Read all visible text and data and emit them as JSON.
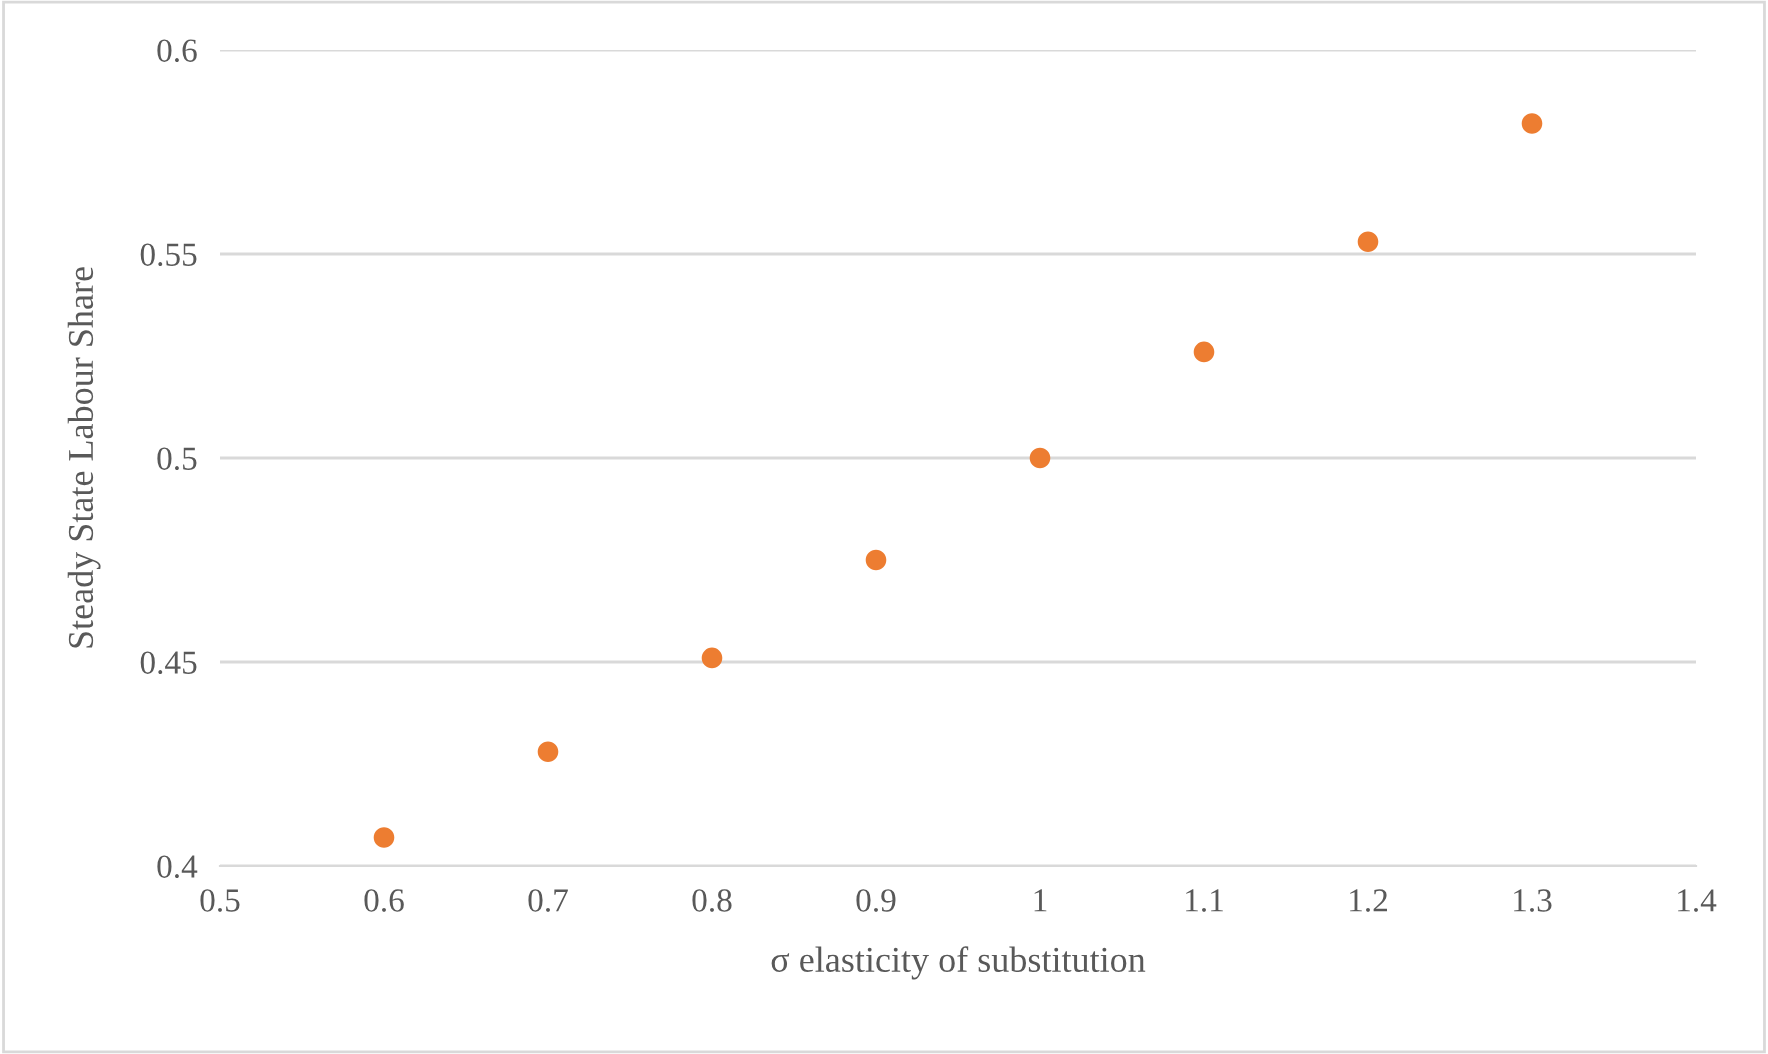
{
  "chart_data": {
    "type": "scatter",
    "xlabel": "σ elasticity of substitution",
    "ylabel": "Steady State Labour Share",
    "x": [
      0.6,
      0.7,
      0.8,
      0.9,
      1.0,
      1.1,
      1.2,
      1.3
    ],
    "series": [
      {
        "color": "#ed7d31",
        "values": [
          0.407,
          0.428,
          0.451,
          0.475,
          0.5,
          0.526,
          0.553,
          0.582
        ]
      }
    ],
    "xlim": [
      0.5,
      1.4
    ],
    "ylim": [
      0.4,
      0.6
    ],
    "xticks": [
      0.5,
      0.6,
      0.7,
      0.8,
      0.9,
      1,
      1.1,
      1.2,
      1.3,
      1.4
    ],
    "yticks": [
      0.4,
      0.45,
      0.5,
      0.55,
      0.6
    ],
    "grid": "y",
    "marker": "circle"
  }
}
